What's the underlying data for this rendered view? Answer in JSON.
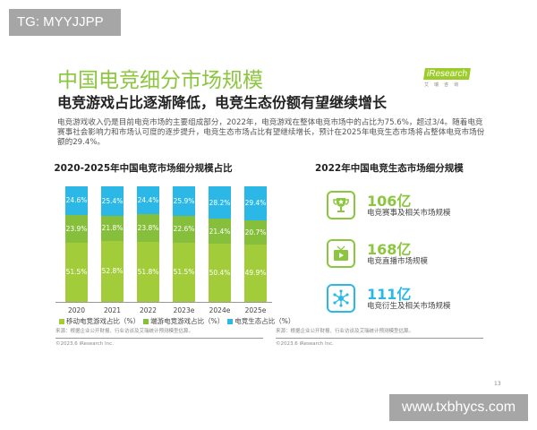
{
  "watermarks": {
    "top_left": "TG: MYYJJPP",
    "bottom_right": "www.txbhycs.com"
  },
  "logo": {
    "brand": "iResearch",
    "sub": "艾瑞咨询"
  },
  "title": "中国电竞细分市场规模",
  "subtitle": "电竞游戏占比逐渐降低，电竞生态份额有望继续增长",
  "paragraph": "电竞游戏收入仍是目前电竞市场的主要组成部分，2022年，电竞游戏在整体电竞市场中的占比为75.6%，超过3/4。随着电竞赛事社会影响力和市场认可度的逐步提升，电竞生态市场占比有望继续增长，预计在2025年电竞生态市场将占整体电竞市场份额的29.4%。",
  "colors": {
    "mobile": "#a3cc3a",
    "pc": "#86bf3c",
    "ecosystem": "#2bb8e6",
    "title_green": "#8cc63f"
  },
  "chart_data": {
    "type": "bar",
    "stacked": true,
    "title": "2020-2025年中国电竞市场细分规模占比",
    "categories": [
      "2020",
      "2021",
      "2022",
      "2023e",
      "2024e",
      "2025e"
    ],
    "series": [
      {
        "name": "移动电竞游戏占比（%）",
        "values": [
          51.5,
          52.8,
          51.8,
          51.5,
          50.4,
          49.9
        ],
        "labels": [
          "51.5%",
          "52.8%",
          "51.8%",
          "51.5%",
          "50.4%",
          "49.9%"
        ]
      },
      {
        "name": "端游电竞游戏占比（%）",
        "values": [
          23.9,
          21.8,
          23.8,
          22.6,
          21.4,
          20.7
        ],
        "labels": [
          "23.9%",
          "21.8%",
          "23.8%",
          "22.6%",
          "21.4%",
          "20.7%"
        ]
      },
      {
        "name": "电竞生态占比（%）",
        "values": [
          24.6,
          25.4,
          24.4,
          25.9,
          28.2,
          29.4
        ],
        "labels": [
          "24.6%",
          "25.4%",
          "24.4%",
          "25.9%",
          "28.2%",
          "29.4%"
        ]
      }
    ],
    "ylim": [
      0,
      100
    ],
    "legend": "bottom",
    "grid": false
  },
  "ecosystem": {
    "title": "2022年中国电竞生态市场细分规模",
    "items": [
      {
        "icon": "trophy-icon",
        "value": "106亿",
        "label": "电竞赛事及相关市场规模",
        "color": "#8cc63f"
      },
      {
        "icon": "tv-play-icon",
        "value": "168亿",
        "label": "电竞直播市场规模",
        "color": "#8cc63f"
      },
      {
        "icon": "network-icon",
        "value": "111亿",
        "label": "电竞衍生及相关市场规模",
        "color": "#2bb8e6"
      }
    ]
  },
  "footnotes": {
    "left_source": "来源：根据企业公开财报、行业访谈及艾瑞统计预测模型估算。",
    "right_source": "来源：根据企业公开财报、行业访谈及艾瑞统计预测模型估算。",
    "copyright": "©2023.6 iResearch Inc."
  },
  "page_number": "13"
}
